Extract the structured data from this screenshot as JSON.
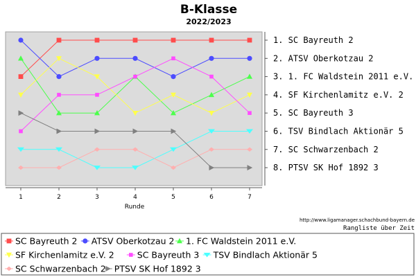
{
  "chart_data": {
    "type": "line",
    "title": "B-Klasse",
    "subtitle": "2022/2023",
    "xlabel": "Runde",
    "ylabel": "",
    "x": [
      1,
      2,
      3,
      4,
      5,
      6,
      7
    ],
    "ylim": [
      1,
      8
    ],
    "y_inverted": true,
    "grid": false,
    "background": "#dcdcdc",
    "rank_labels": [
      "1. SC Bayreuth 2",
      "2. ATSV Oberkotzau 2",
      "3. 1. FC Waldstein 2011 e.V.",
      "4. SF Kirchenlamitz e.V. 2",
      "5. SC Bayreuth 3",
      "6. TSV Bindlach Aktionär 5",
      "7. SC Schwarzenbach 2",
      "8. PTSV SK Hof 1892 3"
    ],
    "legend_position": "bottom",
    "series": [
      {
        "name": "SC Bayreuth 2",
        "color": "#ff4c4c",
        "marker": "square",
        "values": [
          3,
          1,
          1,
          1,
          1,
          1,
          1
        ]
      },
      {
        "name": "ATSV Oberkotzau 2",
        "color": "#4c4cff",
        "marker": "circle",
        "values": [
          1,
          3,
          2,
          2,
          3,
          2,
          2
        ]
      },
      {
        "name": "1. FC Waldstein 2011 e.V.",
        "color": "#4cff4c",
        "marker": "triangle-up",
        "values": [
          2,
          5,
          5,
          3,
          5,
          4,
          3
        ]
      },
      {
        "name": "SF Kirchenlamitz e.V. 2",
        "color": "#ffff4c",
        "marker": "triangle-down",
        "values": [
          4,
          2,
          3,
          5,
          4,
          5,
          4
        ]
      },
      {
        "name": "SC Bayreuth 3",
        "color": "#ff4cff",
        "marker": "square-small",
        "values": [
          6,
          4,
          4,
          3,
          2,
          3,
          5
        ]
      },
      {
        "name": "TSV Bindlach Aktionär 5",
        "color": "#4cffff",
        "marker": "triangle-down-wide",
        "values": [
          7,
          7,
          8,
          8,
          7,
          6,
          6
        ]
      },
      {
        "name": "SC Schwarzenbach 2",
        "color": "#ffafaf",
        "marker": "diamond",
        "values": [
          8,
          8,
          7,
          7,
          8,
          7,
          7
        ]
      },
      {
        "name": "PTSV SK Hof 1892 3",
        "color": "#808080",
        "marker": "triangle-right",
        "values": [
          5,
          6,
          6,
          6,
          6,
          8,
          8
        ]
      }
    ]
  },
  "footer": {
    "url": "http://www.ligamanager.schachbund-bayern.de",
    "caption": "Rangliste über Zeit"
  }
}
